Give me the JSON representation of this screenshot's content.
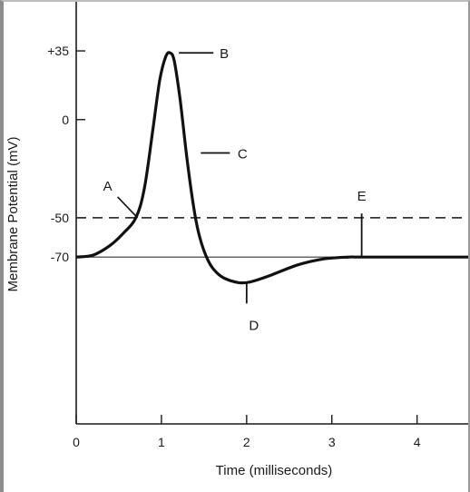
{
  "chart_data": {
    "type": "line",
    "title": "",
    "xlabel": "Time (milliseconds)",
    "ylabel": "Membrane Potential (mV)",
    "xlim": [
      0,
      4.6
    ],
    "ylim": [
      -155,
      60
    ],
    "x_ticks": [
      {
        "value": 0,
        "label": "0"
      },
      {
        "value": 1,
        "label": "1"
      },
      {
        "value": 2,
        "label": "2"
      },
      {
        "value": 3,
        "label": "3"
      },
      {
        "value": 4,
        "label": "4"
      }
    ],
    "y_ticks": [
      {
        "value": 35,
        "label": "+35"
      },
      {
        "value": 0,
        "label": "0"
      },
      {
        "value": -50,
        "label": "-50"
      },
      {
        "value": -70,
        "label": "-70"
      }
    ],
    "grid": false,
    "legend": "none",
    "series": [
      {
        "x": [
          0,
          0.2,
          0.4,
          0.55,
          0.7,
          0.8,
          0.9,
          0.98,
          1.05,
          1.1,
          1.15,
          1.22,
          1.3,
          1.38,
          1.45,
          1.55,
          1.65,
          1.75,
          1.9,
          2.0,
          2.1,
          2.3,
          2.6,
          2.9,
          3.2,
          3.4,
          4.6
        ],
        "y": [
          -70,
          -69,
          -64,
          -58,
          -50,
          -35,
          -5,
          20,
          32,
          34,
          30,
          10,
          -20,
          -45,
          -60,
          -72,
          -78,
          -81,
          -83,
          -83,
          -82,
          -79,
          -74,
          -71,
          -70,
          -70,
          -70
        ]
      }
    ],
    "reference_lines": [
      {
        "type": "threshold",
        "y": -50,
        "style": "dashed"
      },
      {
        "type": "resting",
        "y": -70,
        "style": "solid"
      }
    ],
    "annotations": [
      {
        "label": "A",
        "x": 0.72,
        "y": -50
      },
      {
        "label": "B",
        "x": 1.12,
        "y": 34
      },
      {
        "label": "C",
        "x": 1.42,
        "y": -17
      },
      {
        "label": "D",
        "x": 2.0,
        "y": -83
      },
      {
        "label": "E",
        "x": 3.35,
        "y": -70
      }
    ]
  }
}
